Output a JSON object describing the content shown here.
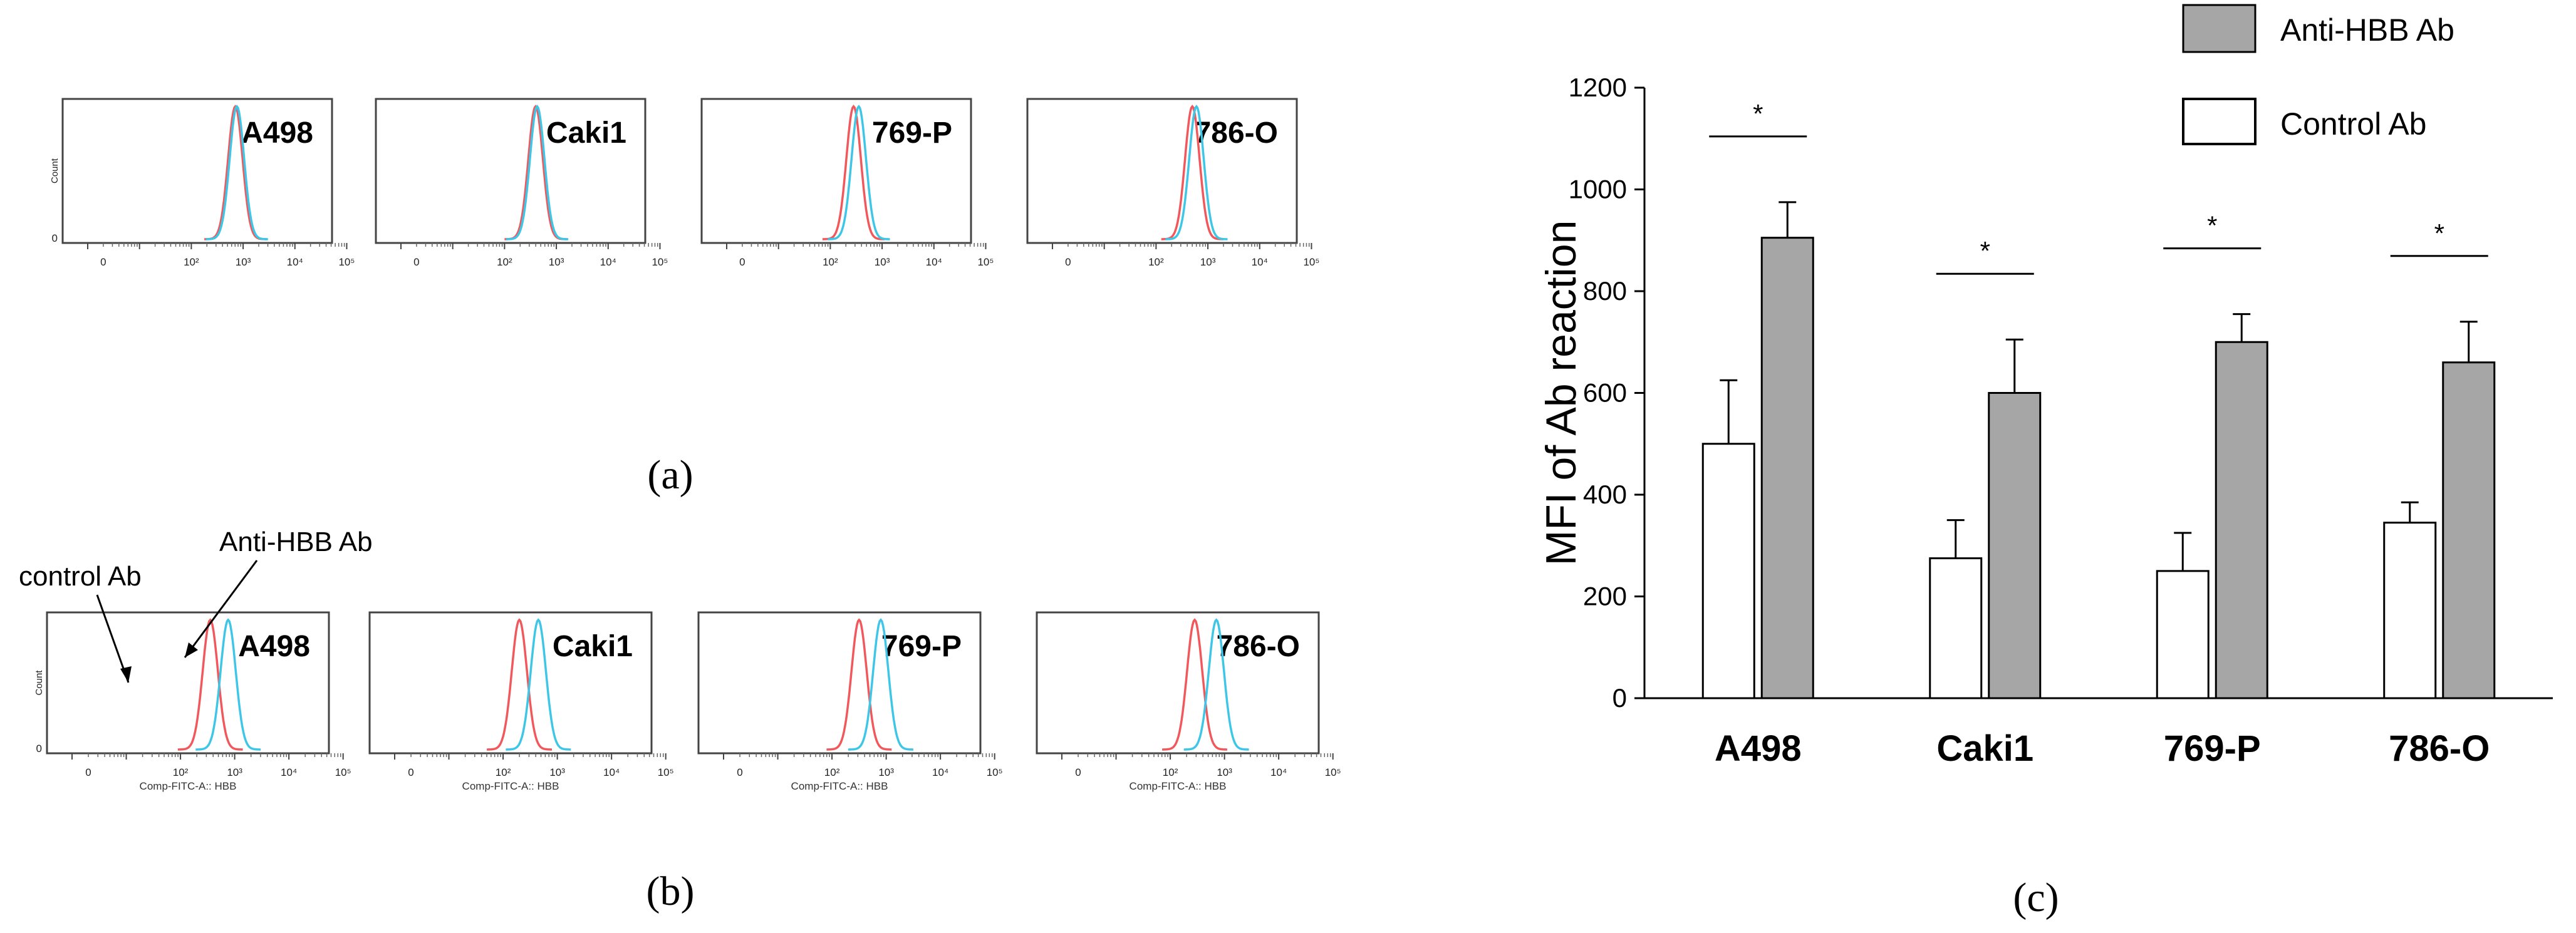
{
  "colors": {
    "control": "#f0585c",
    "anti": "#3ec6e6",
    "bar_anti": "#a6a6a6",
    "bar_control": "#ffffff"
  },
  "panels": {
    "a": {
      "label": "(a)"
    },
    "b": {
      "label": "(b)",
      "annotations": {
        "control": "control Ab",
        "anti": "Anti-HBB Ab"
      }
    },
    "c": {
      "label": "(c)"
    }
  },
  "chart_data": [
    {
      "panel": "a",
      "type": "histogram",
      "y_axis_label": "Count",
      "x_scale": "log",
      "x_ticks": [
        "0",
        "10²",
        "10³",
        "10⁴",
        "10⁵"
      ],
      "x_axis_label": "",
      "series_names": [
        "control Ab",
        "Anti-HBB Ab"
      ],
      "subplots": [
        {
          "title": "A498",
          "peaks_log10": {
            "control": 2.85,
            "anti": 2.88
          }
        },
        {
          "title": "Caki1",
          "peaks_log10": {
            "control": 2.6,
            "anti": 2.63
          }
        },
        {
          "title": "769-P",
          "peaks_log10": {
            "control": 2.45,
            "anti": 2.55
          }
        },
        {
          "title": "786-O",
          "peaks_log10": {
            "control": 2.7,
            "anti": 2.78
          }
        }
      ]
    },
    {
      "panel": "b",
      "type": "histogram",
      "y_axis_label": "Count",
      "x_scale": "log",
      "x_ticks": [
        "0",
        "10²",
        "10³",
        "10⁴",
        "10⁵"
      ],
      "x_axis_label": "Comp-FITC-A:: HBB",
      "series_names": [
        "control Ab",
        "Anti-HBB Ab"
      ],
      "subplots": [
        {
          "title": "A498",
          "peaks_log10": {
            "control": 2.55,
            "anti": 2.88
          }
        },
        {
          "title": "Caki1",
          "peaks_log10": {
            "control": 2.3,
            "anti": 2.65
          }
        },
        {
          "title": "769-P",
          "peaks_log10": {
            "control": 2.5,
            "anti": 2.9
          }
        },
        {
          "title": "786-O",
          "peaks_log10": {
            "control": 2.45,
            "anti": 2.85
          }
        }
      ]
    },
    {
      "panel": "c",
      "type": "bar",
      "categories": [
        "A498",
        "Caki1",
        "769-P",
        "786-O"
      ],
      "series": [
        {
          "name": "Control Ab",
          "values": [
            500,
            275,
            250,
            345
          ],
          "errors": [
            125,
            75,
            75,
            40
          ]
        },
        {
          "name": "Anti-HBB Ab",
          "values": [
            905,
            600,
            700,
            660
          ],
          "errors": [
            70,
            105,
            55,
            80
          ]
        }
      ],
      "significance": [
        "*",
        "*",
        "*",
        "*"
      ],
      "ylabel": "MFI of Ab reaction",
      "xlabel": "",
      "ylim": [
        0,
        1200
      ],
      "yticks": [
        0,
        200,
        400,
        600,
        800,
        1000,
        1200
      ],
      "legend": [
        "Anti-HBB Ab",
        "Control Ab"
      ],
      "legend_position": "top-right"
    }
  ]
}
